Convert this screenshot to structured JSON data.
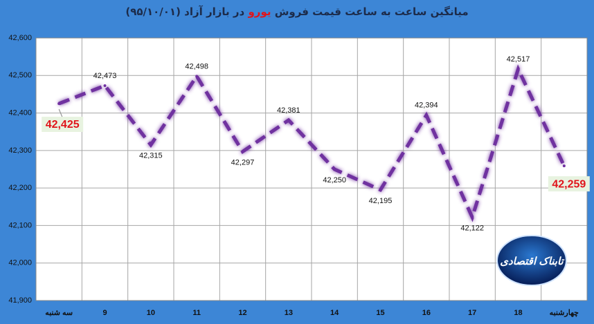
{
  "chart_data": {
    "type": "line",
    "title_parts": [
      "میانگین ساعت به ساعت قیمت فروش",
      "یورو",
      "در بازار آزاد (۹۵/۱۰/۰۱)"
    ],
    "categories": [
      "سه شنبه",
      "9",
      "10",
      "11",
      "12",
      "13",
      "14",
      "15",
      "16",
      "17",
      "18",
      "چهارشنبه"
    ],
    "values": [
      42425,
      42473,
      42315,
      42498,
      42297,
      42381,
      42250,
      42195,
      42394,
      42122,
      42517,
      42259
    ],
    "value_labels": [
      "42,425",
      "42,473",
      "42,315",
      "42,498",
      "42,297",
      "42,381",
      "42,250",
      "42,195",
      "42,394",
      "42,122",
      "42,517",
      "42,259"
    ],
    "color": "#7030a0",
    "ylim": [
      41900,
      42600
    ],
    "yticks": [
      {
        "value": 41900,
        "label": "41,900"
      },
      {
        "value": 42000,
        "label": "42,000"
      },
      {
        "value": 42100,
        "label": "42,100"
      },
      {
        "value": 42200,
        "label": "42,200"
      },
      {
        "value": 42300,
        "label": "42,300"
      },
      {
        "value": 42400,
        "label": "42,400"
      },
      {
        "value": 42500,
        "label": "42,500"
      },
      {
        "value": 42600,
        "label": "42,600"
      }
    ],
    "grid": true,
    "logo": "تابناک اقتصادی"
  }
}
